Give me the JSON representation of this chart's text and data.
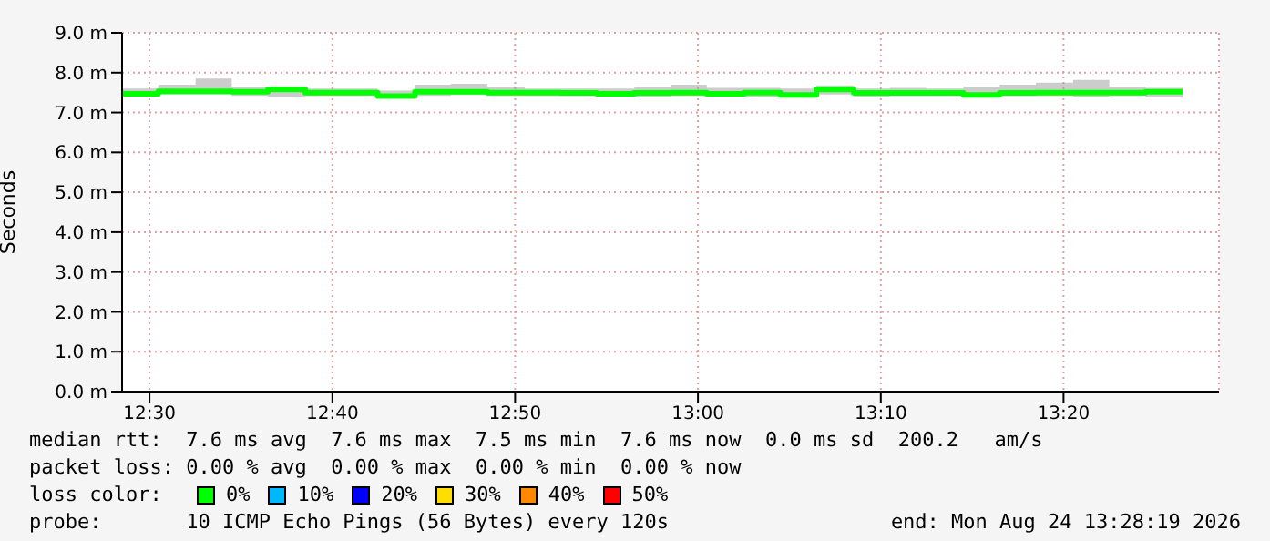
{
  "chart_data": {
    "type": "step",
    "ylabel": "Seconds",
    "x": [
      12.475,
      12.508,
      12.542,
      12.575,
      12.608,
      12.642,
      12.675,
      12.708,
      12.742,
      12.775,
      12.808,
      12.842,
      12.875,
      12.908,
      12.942,
      12.975,
      13.008,
      13.042,
      13.075,
      13.108,
      13.142,
      13.175,
      13.208,
      13.242,
      13.275,
      13.308,
      13.342,
      13.375,
      13.408,
      13.442
    ],
    "series": [
      {
        "color": "#00ff00",
        "values": [
          7.47,
          7.53,
          7.53,
          7.52,
          7.58,
          7.5,
          7.5,
          7.41,
          7.52,
          7.52,
          7.5,
          7.5,
          7.49,
          7.47,
          7.49,
          7.5,
          7.47,
          7.5,
          7.44,
          7.58,
          7.49,
          7.49,
          7.49,
          7.44,
          7.49,
          7.5,
          7.5,
          7.5,
          7.52,
          7.52
        ],
        "lower": [
          7.4,
          7.45,
          7.45,
          7.42,
          7.4,
          7.42,
          7.42,
          7.38,
          7.42,
          7.44,
          7.42,
          7.42,
          7.42,
          7.42,
          7.4,
          7.42,
          7.42,
          7.4,
          7.38,
          7.45,
          7.4,
          7.42,
          7.42,
          7.38,
          7.42,
          7.42,
          7.4,
          7.42,
          7.38,
          7.4
        ],
        "upper": [
          7.6,
          7.7,
          7.85,
          7.65,
          7.62,
          7.6,
          7.6,
          7.55,
          7.7,
          7.72,
          7.65,
          7.6,
          7.6,
          7.6,
          7.65,
          7.7,
          7.62,
          7.62,
          7.6,
          7.68,
          7.6,
          7.62,
          7.6,
          7.65,
          7.7,
          7.75,
          7.82,
          7.65,
          7.62,
          7.72
        ]
      }
    ],
    "xlim": [
      12.475,
      13.475
    ],
    "xticks": [
      {
        "value": 12.5,
        "label": "12:30"
      },
      {
        "value": 12.6667,
        "label": "12:40"
      },
      {
        "value": 12.8333,
        "label": "12:50"
      },
      {
        "value": 13,
        "label": "13:00"
      },
      {
        "value": 13.1667,
        "label": "13:10"
      },
      {
        "value": 13.3333,
        "label": "13:20"
      }
    ],
    "ylim": [
      0,
      9
    ],
    "yticks": [
      {
        "value": 0,
        "label": "0.0 m"
      },
      {
        "value": 1,
        "label": "1.0 m"
      },
      {
        "value": 2,
        "label": "2.0 m"
      },
      {
        "value": 3,
        "label": "3.0 m"
      },
      {
        "value": 4,
        "label": "4.0 m"
      },
      {
        "value": 5,
        "label": "5.0 m"
      },
      {
        "value": 6,
        "label": "6.0 m"
      },
      {
        "value": 7,
        "label": "7.0 m"
      },
      {
        "value": 8,
        "label": "8.0 m"
      },
      {
        "value": 9,
        "label": "9.0 m"
      }
    ],
    "grid": true,
    "annotations": [
      "median rtt:  7.6 ms avg  7.6 ms max  7.5 ms min  7.6 ms now  0.0 ms sd  200.2   am/s",
      "packet loss: 0.00 % avg  0.00 % max  0.00 % min  0.00 % now",
      "loss color:",
      "0%",
      "10%",
      "20%",
      "30%",
      "40%",
      "50%",
      "probe:       10 ICMP Echo Pings (56 Bytes) every 120s",
      "end: Mon Aug 24 13:28:19 2026"
    ]
  }
}
